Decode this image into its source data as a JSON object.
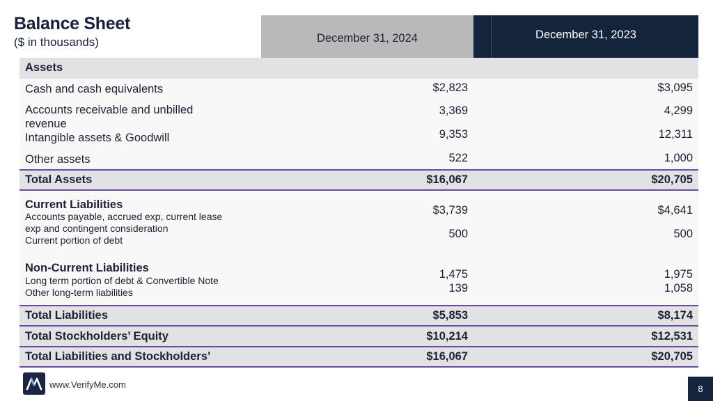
{
  "header": {
    "title": "Balance Sheet",
    "subtitle": "($ in thousands)",
    "col_2024": "December 31, 2024",
    "col_2023": "December 31, 2023"
  },
  "assets": {
    "section": "Assets",
    "rows": [
      {
        "label": "Cash and cash equivalents",
        "v2024": "$2,823",
        "v2023": "$3,095"
      },
      {
        "label_line1": "Accounts receivable and unbilled",
        "label_line2": "revenue",
        "v2024": "3,369",
        "v2023": "4,299"
      },
      {
        "label": "Intangible assets & Goodwill",
        "v2024": "9,353",
        "v2023": "12,311"
      },
      {
        "label": "Other assets",
        "v2024": "522",
        "v2023": "1,000"
      }
    ],
    "total": {
      "label": "Total Assets",
      "v2024": "$16,067",
      "v2023": "$20,705"
    }
  },
  "current_liabilities": {
    "section": "Current Liabilities",
    "row1_line1": "Accounts payable, accrued exp, current lease",
    "row1_line2": "exp and contingent consideration",
    "row2": "Current portion of debt",
    "v2024_1": "$3,739",
    "v2023_1": "$4,641",
    "v2024_2": "500",
    "v2023_2": "500"
  },
  "noncurrent_liabilities": {
    "section": "Non-Current Liabilities",
    "row1": "Long term portion of debt & Convertible Note",
    "row2": "Other long-term liabilities",
    "v2024_1": "1,475",
    "v2023_1": "1,975",
    "v2024_2": "139",
    "v2023_2": "1,058"
  },
  "totals": [
    {
      "label": "Total Liabilities",
      "v2024": "$5,853",
      "v2023": "$8,174"
    },
    {
      "label": "Total Stockholders’ Equity",
      "v2024": "$10,214",
      "v2023": "$12,531"
    },
    {
      "label": "Total Liabilities and Stockholders’",
      "v2024": "$16,067",
      "v2023": "$20,705"
    }
  ],
  "footer": {
    "logo_icon": "verifyme-logo-icon",
    "url": "www.VerifyMe.com",
    "page": "8"
  },
  "colors": {
    "navy": "#14243b",
    "gray_header": "#b9b9b9",
    "band": "#e2e2e4",
    "rule": "#6d4aa0"
  }
}
